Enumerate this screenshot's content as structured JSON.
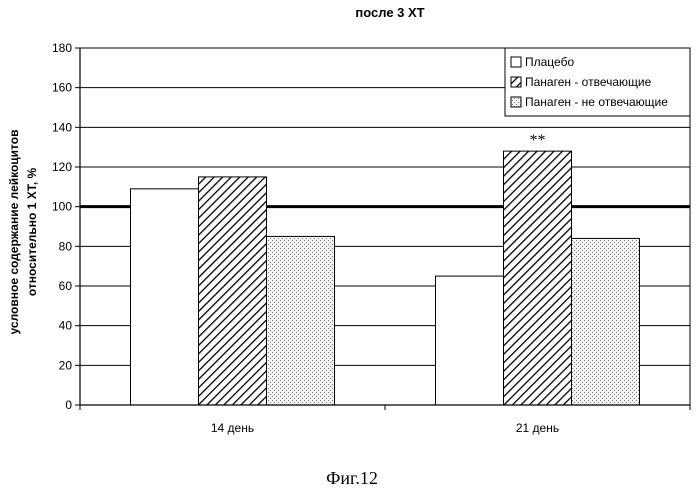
{
  "chart_data": {
    "type": "bar",
    "title": "после 3 ХТ",
    "ylabel_line1": "условное содержание лейкоцитов",
    "ylabel_line2": "относительно 1 ХТ, %",
    "xlabel": "",
    "ylim": [
      0,
      180
    ],
    "ytick_step": 20,
    "categories": [
      "14 день",
      "21 день"
    ],
    "series": [
      {
        "name": "Плацебо",
        "values": [
          109,
          65
        ],
        "pattern": "solid-white"
      },
      {
        "name": "Панаген - отвечающие",
        "values": [
          115,
          128
        ],
        "pattern": "diagonal-hatch"
      },
      {
        "name": "Панаген - не отвечающие",
        "values": [
          85,
          84
        ],
        "pattern": "dots"
      }
    ],
    "reference_line": 100,
    "grid": true,
    "legend_position": "top-right",
    "annotations": [
      {
        "text": "**",
        "category": "21 день",
        "series": "Панаген - отвечающие"
      }
    ]
  },
  "caption": "Фиг.12"
}
